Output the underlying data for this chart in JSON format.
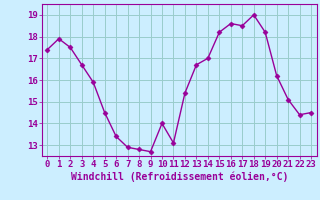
{
  "x": [
    0,
    1,
    2,
    3,
    4,
    5,
    6,
    7,
    8,
    9,
    10,
    11,
    12,
    13,
    14,
    15,
    16,
    17,
    18,
    19,
    20,
    21,
    22,
    23
  ],
  "y": [
    17.4,
    17.9,
    17.5,
    16.7,
    15.9,
    14.5,
    13.4,
    12.9,
    12.8,
    12.7,
    14.0,
    13.1,
    15.4,
    16.7,
    17.0,
    18.2,
    18.6,
    18.5,
    19.0,
    18.2,
    16.2,
    15.1,
    14.4,
    14.5
  ],
  "line_color": "#990099",
  "marker": "D",
  "marker_size": 2.5,
  "bg_color": "#cceeff",
  "grid_color": "#99cccc",
  "xlabel": "Windchill (Refroidissement éolien,°C)",
  "xlabel_fontsize": 7,
  "ylabel_ticks": [
    13,
    14,
    15,
    16,
    17,
    18,
    19
  ],
  "ylim": [
    12.5,
    19.5
  ],
  "xlim": [
    -0.5,
    23.5
  ],
  "tick_fontsize": 6.5,
  "line_width": 1.0
}
